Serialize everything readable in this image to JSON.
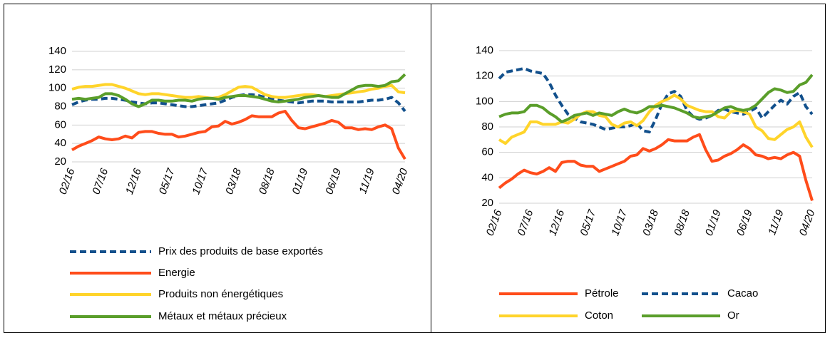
{
  "chart_data": [
    {
      "type": "line",
      "categories": [
        "02/16",
        null,
        null,
        null,
        null,
        "07/16",
        null,
        null,
        null,
        null,
        "12/16",
        null,
        null,
        null,
        null,
        "05/17",
        null,
        null,
        null,
        null,
        "10/17",
        null,
        null,
        null,
        null,
        "03/18",
        null,
        null,
        null,
        null,
        "08/18",
        null,
        null,
        null,
        null,
        "01/19",
        null,
        null,
        null,
        null,
        "06/19",
        null,
        null,
        null,
        null,
        "11/19",
        null,
        null,
        null,
        null,
        "04/20"
      ],
      "ylim": [
        20,
        140
      ],
      "yticks": [
        20,
        40,
        60,
        80,
        100,
        120,
        140
      ],
      "grid": true,
      "series": [
        {
          "name": "Prix des produits de base exportés",
          "color": "#12508c",
          "dashed": true,
          "values": [
            82,
            85,
            87,
            88,
            88,
            89,
            89,
            88,
            87,
            85,
            84,
            83,
            84,
            84,
            83,
            82,
            81,
            80,
            80,
            81,
            82,
            83,
            84,
            87,
            90,
            92,
            93,
            93,
            92,
            90,
            88,
            87,
            86,
            85,
            84,
            85,
            86,
            86,
            86,
            85,
            85,
            85,
            85,
            85,
            86,
            87,
            87,
            88,
            90,
            84,
            75
          ]
        },
        {
          "name": "Energie",
          "color": "#ff4c1a",
          "dashed": false,
          "values": [
            33,
            37,
            40,
            43,
            47,
            45,
            44,
            45,
            48,
            46,
            52,
            53,
            53,
            51,
            50,
            50,
            47,
            48,
            50,
            52,
            53,
            58,
            59,
            64,
            61,
            63,
            66,
            70,
            69,
            69,
            69,
            73,
            75,
            65,
            57,
            56,
            58,
            60,
            62,
            65,
            63,
            57,
            57,
            55,
            56,
            55,
            58,
            60,
            56,
            35,
            23
          ]
        },
        {
          "name": "Produits  non énergétiques",
          "color": "#ffd42a",
          "dashed": false,
          "values": [
            99,
            101,
            102,
            102,
            103,
            104,
            104,
            102,
            100,
            97,
            94,
            93,
            94,
            94,
            93,
            92,
            91,
            90,
            90,
            91,
            90,
            89,
            90,
            93,
            97,
            101,
            102,
            101,
            97,
            93,
            91,
            90,
            90,
            91,
            92,
            93,
            93,
            92,
            91,
            92,
            93,
            94,
            95,
            96,
            97,
            99,
            100,
            102,
            103,
            96,
            95
          ]
        },
        {
          "name": "Métaux et métaux précieux",
          "color": "#5a9e2a",
          "dashed": false,
          "values": [
            88,
            89,
            88,
            89,
            90,
            94,
            94,
            92,
            88,
            83,
            80,
            83,
            87,
            87,
            86,
            86,
            87,
            87,
            86,
            88,
            89,
            89,
            88,
            90,
            91,
            92,
            92,
            91,
            90,
            88,
            86,
            85,
            86,
            87,
            88,
            90,
            91,
            92,
            91,
            90,
            90,
            94,
            98,
            102,
            103,
            103,
            102,
            103,
            107,
            108,
            115
          ]
        }
      ]
    },
    {
      "type": "line",
      "categories": [
        "02/16",
        null,
        null,
        null,
        null,
        "07/16",
        null,
        null,
        null,
        null,
        "12/16",
        null,
        null,
        null,
        null,
        "05/17",
        null,
        null,
        null,
        null,
        "10/17",
        null,
        null,
        null,
        null,
        "03/18",
        null,
        null,
        null,
        null,
        "08/18",
        null,
        null,
        null,
        null,
        "01/19",
        null,
        null,
        null,
        null,
        "06/19",
        null,
        null,
        null,
        null,
        "11/19",
        null,
        null,
        null,
        null,
        "04/20"
      ],
      "ylim": [
        20,
        140
      ],
      "yticks": [
        20,
        40,
        60,
        80,
        100,
        120,
        140
      ],
      "grid": true,
      "series": [
        {
          "name": "Pétrole",
          "color": "#ff4c1a",
          "dashed": false,
          "values": [
            32,
            36,
            39,
            43,
            46,
            44,
            43,
            45,
            48,
            45,
            52,
            53,
            53,
            50,
            49,
            49,
            45,
            47,
            49,
            51,
            53,
            57,
            58,
            63,
            61,
            63,
            66,
            70,
            69,
            69,
            69,
            72,
            74,
            62,
            53,
            54,
            57,
            59,
            62,
            66,
            63,
            58,
            57,
            55,
            56,
            55,
            58,
            60,
            57,
            38,
            22
          ]
        },
        {
          "name": "Cacao",
          "color": "#12508c",
          "dashed": true,
          "values": [
            118,
            123,
            124,
            125,
            126,
            124,
            123,
            122,
            115,
            105,
            97,
            90,
            87,
            84,
            83,
            82,
            80,
            78,
            79,
            80,
            80,
            81,
            83,
            77,
            76,
            86,
            98,
            106,
            108,
            104,
            93,
            88,
            86,
            87,
            89,
            93,
            94,
            92,
            91,
            90,
            92,
            95,
            87,
            92,
            97,
            101,
            98,
            104,
            107,
            96,
            90
          ]
        },
        {
          "name": "Coton",
          "color": "#ffd42a",
          "dashed": false,
          "values": [
            70,
            67,
            72,
            74,
            76,
            84,
            84,
            82,
            82,
            82,
            84,
            83,
            86,
            90,
            92,
            92,
            89,
            88,
            82,
            80,
            83,
            84,
            81,
            85,
            92,
            97,
            100,
            102,
            105,
            102,
            97,
            95,
            93,
            92,
            92,
            88,
            87,
            92,
            93,
            92,
            90,
            80,
            77,
            71,
            70,
            74,
            78,
            80,
            84,
            72,
            64
          ]
        },
        {
          "name": "Or",
          "color": "#5a9e2a",
          "dashed": false,
          "values": [
            88,
            90,
            91,
            91,
            92,
            97,
            97,
            95,
            91,
            88,
            84,
            86,
            89,
            90,
            91,
            89,
            91,
            90,
            89,
            92,
            94,
            92,
            91,
            93,
            96,
            96,
            97,
            96,
            95,
            93,
            91,
            88,
            87,
            88,
            89,
            92,
            95,
            96,
            94,
            93,
            94,
            97,
            102,
            107,
            110,
            109,
            107,
            108,
            113,
            115,
            121
          ]
        }
      ]
    }
  ]
}
